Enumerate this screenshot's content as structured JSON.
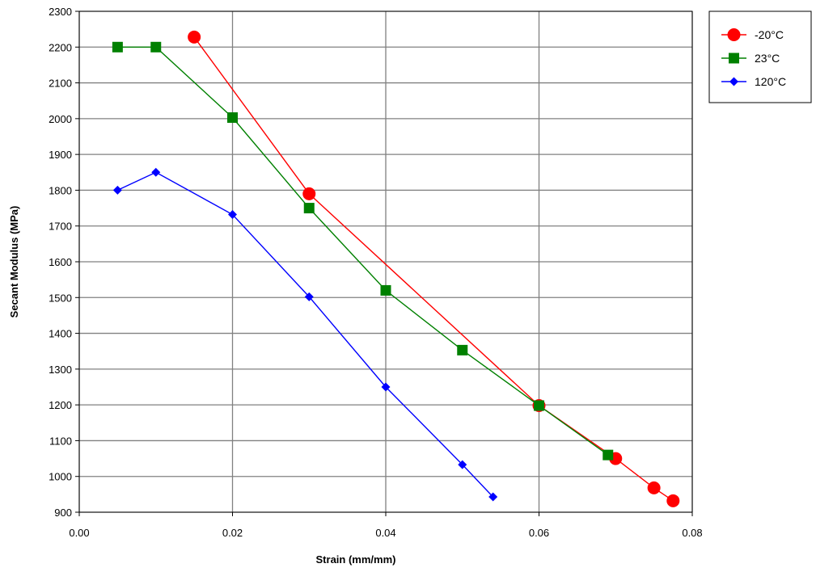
{
  "chart_data": {
    "type": "line",
    "title": "",
    "xlabel": "Strain (mm/mm)",
    "ylabel": "Secant Modulus (MPa)",
    "xlim": [
      0,
      0.08
    ],
    "ylim": [
      900,
      2300
    ],
    "x_ticks": [
      "0.00",
      "0.02",
      "0.04",
      "0.06",
      "0.08"
    ],
    "y_ticks": [
      "900",
      "1000",
      "1100",
      "1200",
      "1300",
      "1400",
      "1500",
      "1600",
      "1700",
      "1800",
      "1900",
      "2000",
      "2100",
      "2200",
      "2300"
    ],
    "grid": true,
    "legend_position": "right-top",
    "series": [
      {
        "name": "-20°C",
        "color": "#ff0000",
        "marker": "circle",
        "points": [
          [
            0.015,
            2228
          ],
          [
            0.03,
            1790
          ],
          [
            0.06,
            1198
          ],
          [
            0.07,
            1050
          ],
          [
            0.075,
            968
          ],
          [
            0.0775,
            932
          ]
        ]
      },
      {
        "name": "23°C",
        "color": "#008000",
        "marker": "square",
        "points": [
          [
            0.005,
            2200
          ],
          [
            0.01,
            2200
          ],
          [
            0.02,
            2003
          ],
          [
            0.03,
            1750
          ],
          [
            0.04,
            1520
          ],
          [
            0.05,
            1353
          ],
          [
            0.06,
            1198
          ],
          [
            0.069,
            1060
          ]
        ]
      },
      {
        "name": "120°C",
        "color": "#0000ff",
        "marker": "diamond",
        "points": [
          [
            0.005,
            1800
          ],
          [
            0.01,
            1850
          ],
          [
            0.02,
            1732
          ],
          [
            0.03,
            1502
          ],
          [
            0.04,
            1250
          ],
          [
            0.05,
            1033
          ],
          [
            0.054,
            943
          ]
        ]
      }
    ]
  }
}
